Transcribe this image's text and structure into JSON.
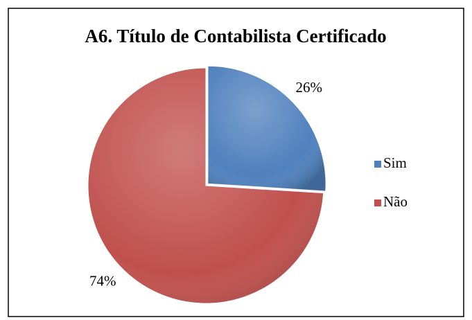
{
  "chart_data": {
    "type": "pie",
    "title": "A6. Título de Contabilista Certificado",
    "categories": [
      "Sim",
      "Não"
    ],
    "values": [
      26,
      74
    ],
    "value_labels": [
      "26%",
      "74%"
    ],
    "colors": [
      "#4f81bd",
      "#c0504d"
    ],
    "legend": "right"
  }
}
